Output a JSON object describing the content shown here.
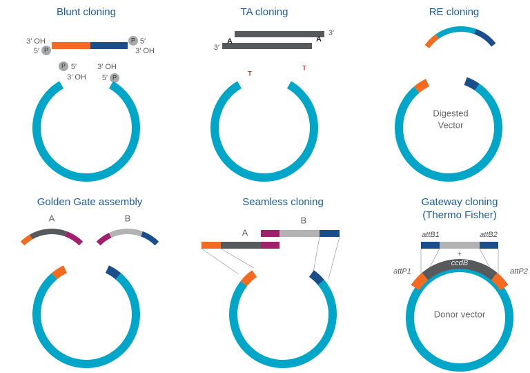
{
  "panels": [
    {
      "title": "Blunt cloning",
      "labels": [
        "3′ OH",
        "5′",
        "P",
        "P",
        "5′",
        "3′ OH",
        "P",
        "5′",
        "3′ OH",
        "3′ OH",
        "5′",
        "P"
      ]
    },
    {
      "title": "TA cloning",
      "labels": [
        "3′",
        "A",
        "A",
        "3′",
        "T",
        "T"
      ]
    },
    {
      "title": "RE cloning",
      "labels": [
        "Digested",
        "Vector"
      ]
    },
    {
      "title": "Golden Gate assembly",
      "labels": [
        "A",
        "B"
      ]
    },
    {
      "title": "Seamless cloning",
      "labels": [
        "A",
        "B"
      ]
    },
    {
      "title": "Gateway cloning",
      "subtitle": "(Thermo Fisher)",
      "labels": [
        "attB1",
        "attB2",
        "+",
        "ccdB",
        "attP1",
        "attP2",
        "Donor vector"
      ]
    }
  ]
}
